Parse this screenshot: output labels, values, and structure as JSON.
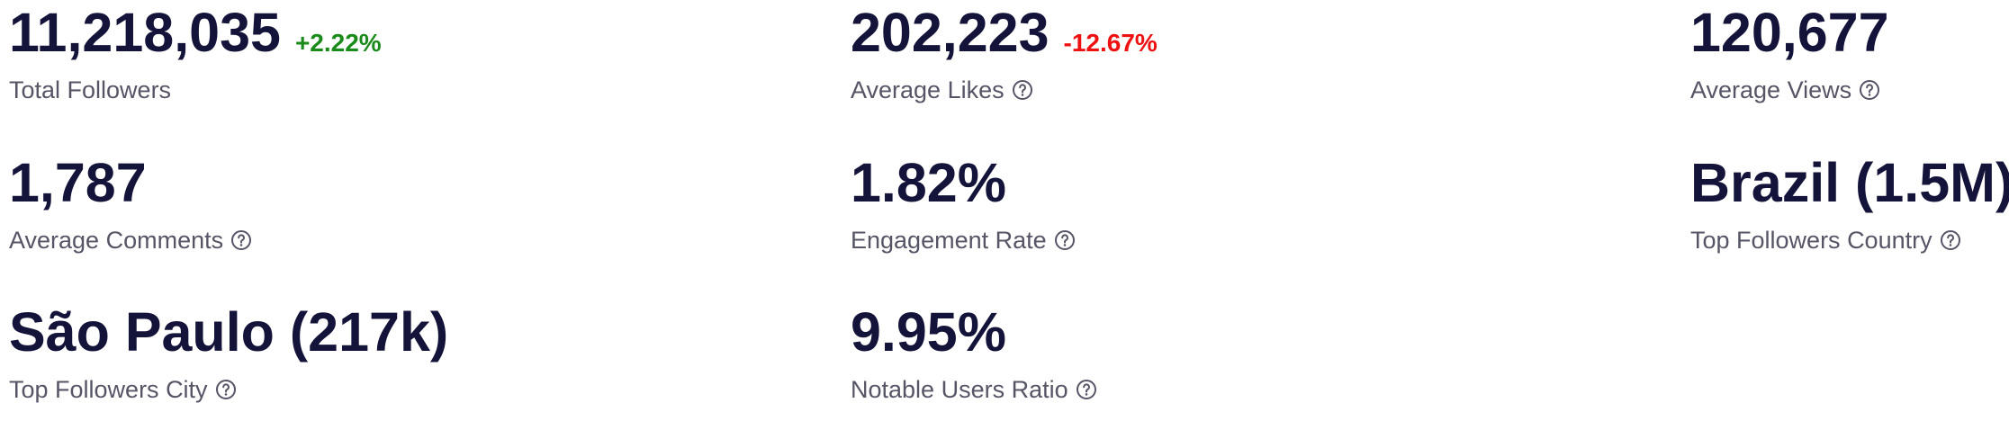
{
  "metrics": [
    {
      "value": "11,218,035",
      "delta": "+2.22%",
      "delta_direction": "up",
      "label": "Total Followers",
      "help": false
    },
    {
      "value": "202,223",
      "delta": "-12.67%",
      "delta_direction": "down",
      "label": "Average Likes",
      "help": true
    },
    {
      "value": "120,677",
      "label": "Average Views",
      "help": true
    },
    {
      "value": "1,787",
      "label": "Average Comments",
      "help": true
    },
    {
      "value": "1.82%",
      "label": "Engagement Rate",
      "help": true
    },
    {
      "value": "Brazil (1.5M)",
      "label": "Top Followers Country",
      "help": true
    },
    {
      "value": "São Paulo (217k)",
      "label": "Top Followers City",
      "help": true
    },
    {
      "value": "9.95%",
      "label": "Notable Users Ratio",
      "help": true
    }
  ],
  "colors": {
    "value_text": "#14143a",
    "label_text": "#555566",
    "delta_up": "#1a8a1a",
    "delta_down": "#ee1111"
  },
  "icons": {
    "help": "question-circle-icon"
  }
}
